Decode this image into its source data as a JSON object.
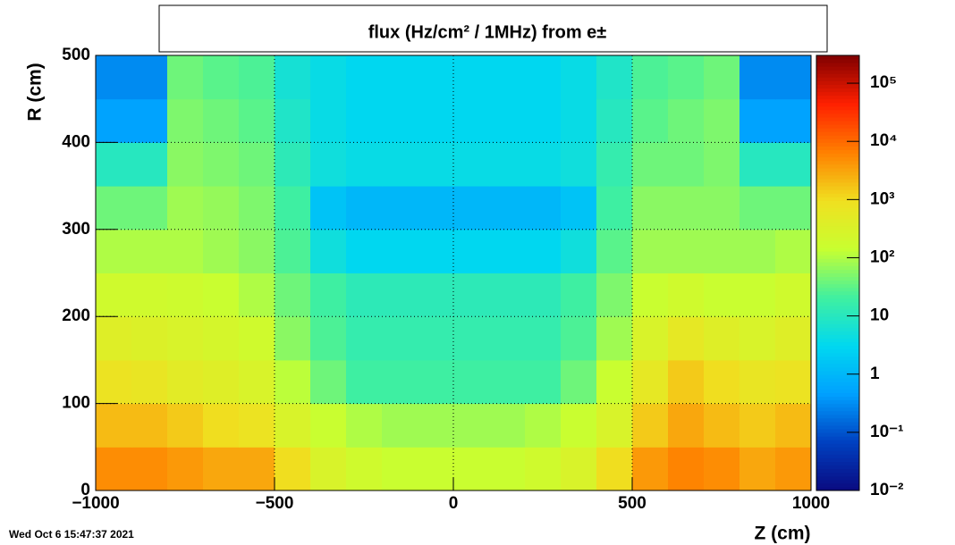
{
  "chart_data": {
    "type": "heatmap",
    "title": "flux (Hz/cm² / 1MHz) from e±",
    "x_label": "Z (cm)",
    "y_label": "R (cm)",
    "timestamp": "Wed Oct  6 15:47:37 2021",
    "xlim": [
      -1000,
      1000
    ],
    "xticks": [
      {
        "value": -1000,
        "label": "−1000"
      },
      {
        "value": -500,
        "label": "−500"
      },
      0,
      500,
      1000
    ],
    "ylim": [
      0,
      500
    ],
    "yticks": [
      0,
      100,
      200,
      300,
      400,
      500
    ],
    "zlim": [
      0.01,
      300000
    ],
    "zticks": [
      {
        "value": 0.01,
        "label": "10⁻²"
      },
      {
        "value": 0.1,
        "label": "10⁻¹"
      },
      1,
      10,
      {
        "value": 100,
        "label": "10²"
      },
      {
        "value": 1000,
        "label": "10³"
      },
      {
        "value": 10000,
        "label": "10⁴"
      },
      {
        "value": 100000,
        "label": "10⁵"
      }
    ],
    "log_z": true,
    "grid": true,
    "colorscale": [
      "#0a0a80",
      "#0040c0",
      "#00a0ff",
      "#00d8f0",
      "#40f0a0",
      "#c8ff30",
      "#f0e020",
      "#ff8000",
      "#ff2000",
      "#800000"
    ],
    "values": [
      [
        5000,
        5000,
        4000,
        3000,
        3000,
        1000,
        300,
        200,
        150,
        150,
        150,
        150,
        200,
        300,
        1000,
        4000,
        6000,
        5000,
        3000,
        4000
      ],
      [
        2000,
        2000,
        1500,
        1000,
        800,
        300,
        150,
        100,
        80,
        80,
        80,
        80,
        100,
        150,
        300,
        1500,
        3000,
        2000,
        1500,
        2000
      ],
      [
        800,
        700,
        500,
        400,
        300,
        120,
        40,
        20,
        20,
        20,
        20,
        20,
        20,
        40,
        150,
        600,
        1500,
        1000,
        700,
        800
      ],
      [
        400,
        350,
        300,
        250,
        200,
        60,
        25,
        15,
        15,
        15,
        15,
        15,
        15,
        25,
        80,
        300,
        600,
        400,
        300,
        400
      ],
      [
        200,
        200,
        180,
        150,
        100,
        40,
        20,
        12,
        12,
        12,
        12,
        12,
        12,
        20,
        50,
        150,
        200,
        150,
        150,
        200
      ],
      [
        100,
        100,
        100,
        80,
        60,
        25,
        5,
        3,
        3,
        3,
        3,
        3,
        3,
        5,
        30,
        80,
        80,
        80,
        80,
        100
      ],
      [
        40,
        40,
        80,
        70,
        50,
        20,
        1.5,
        1,
        1,
        1,
        1,
        1,
        1,
        1.5,
        20,
        60,
        60,
        60,
        40,
        40
      ],
      [
        10,
        10,
        60,
        50,
        40,
        12,
        5,
        4,
        4,
        4,
        4,
        4,
        4,
        5,
        15,
        40,
        40,
        50,
        10,
        10
      ],
      [
        0.5,
        0.5,
        50,
        40,
        30,
        8,
        4,
        3,
        3,
        3,
        3,
        3,
        3,
        4,
        10,
        30,
        40,
        50,
        0.5,
        0.5
      ],
      [
        0.3,
        0.3,
        40,
        30,
        25,
        6,
        4,
        3,
        3,
        3,
        3,
        3,
        3,
        4,
        8,
        25,
        30,
        40,
        0.3,
        0.3
      ]
    ]
  }
}
